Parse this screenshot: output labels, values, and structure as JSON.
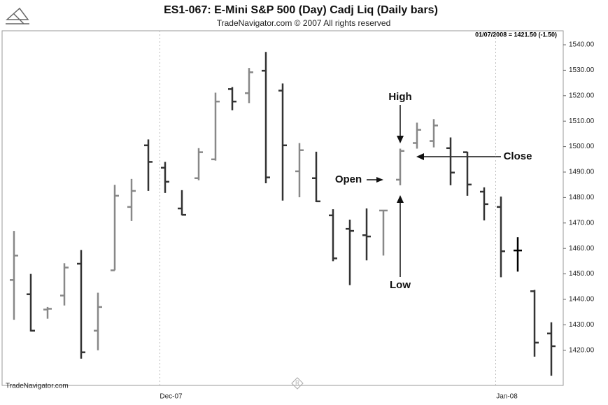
{
  "chart_data": {
    "type": "ohlc",
    "title": "ES1-067:  E-Mini S&P 500 (Day) Cadj Liq  (Daily bars)",
    "subtitle": "TradeNavigator.com © 2007 All rights reserved",
    "info": "01/07/2008 = 1421.50 (-1.50)",
    "watermark": "TradeNavigator.com",
    "categories": [
      null,
      null,
      null,
      null,
      null,
      null,
      null,
      null,
      null,
      "Dec-07",
      null,
      null,
      null,
      null,
      null,
      null,
      null,
      null,
      null,
      null,
      null,
      null,
      null,
      null,
      null,
      null,
      null,
      null,
      null,
      "Jan-08",
      null,
      null,
      null
    ],
    "open": [
      1447.6,
      1442,
      1436,
      1441.5,
      1454,
      1427.7,
      1451.4,
      1476.3,
      1500.5,
      1491.7,
      1475.7,
      1487.6,
      1495,
      1522.6,
      1521,
      1529.8,
      1522,
      1490.3,
      1487.6,
      1473,
      1467.7,
      1465.2,
      1474.9,
      1487,
      1501.4,
      1502.2,
      1499.4,
      1497.8,
      1482.3,
      1476.3,
      1459.2,
      1443.2,
      1426.6
    ],
    "high": [
      1466.9,
      1450,
      1437,
      1454.2,
      1459.4,
      1442.6,
      1485,
      1487.3,
      1502.8,
      1494,
      1482.9,
      1499.4,
      1521.2,
      1523.4,
      1530.9,
      1537.2,
      1524.8,
      1501.4,
      1498,
      1475.4,
      1471.3,
      1475.7,
      1474.9,
      1499.2,
      1509.4,
      1510.8,
      1503.6,
      1498,
      1484,
      1480.4,
      1464.4,
      1443.7,
      1431
    ],
    "low": [
      1432,
      1427.4,
      1432.4,
      1437.6,
      1416.7,
      1420,
      1451.4,
      1470.8,
      1482.6,
      1481.8,
      1473,
      1486.8,
      1494.5,
      1514.3,
      1517.1,
      1485.6,
      1478.8,
      1480.1,
      1478.2,
      1455,
      1445.6,
      1455.3,
      1457.2,
      1484.8,
      1499.2,
      1499.7,
      1484.8,
      1480.7,
      1471,
      1448.7,
      1450.9,
      1417.5,
      1410
    ],
    "close": [
      1457.2,
      1427.7,
      1436.3,
      1452.5,
      1419.2,
      1437,
      1480.7,
      1482.6,
      1494,
      1486.2,
      1473.2,
      1497.8,
      1517.7,
      1517.7,
      1529.2,
      1487.9,
      1500.5,
      1498.6,
      1478.5,
      1456.1,
      1466.9,
      1464.7,
      1474.9,
      1498.3,
      1506.6,
      1508.3,
      1489.8,
      1485.1,
      1477.4,
      1458.9,
      1459.2,
      1423,
      1421.6
    ],
    "colors": [
      "#888",
      "#333",
      "#888",
      "#888",
      "#333",
      "#888",
      "#888",
      "#888",
      "#333",
      "#333",
      "#333",
      "#888",
      "#888",
      "#333",
      "#888",
      "#333",
      "#333",
      "#888",
      "#333",
      "#333",
      "#333",
      "#333",
      "#888",
      "#888",
      "#888",
      "#888",
      "#333",
      "#333",
      "#333",
      "#333",
      "#000",
      "#333",
      "#333"
    ],
    "ylim": [
      1406.2,
      1545.5
    ],
    "yticks": [
      {
        "value": 1420,
        "label": "1420.00"
      },
      {
        "value": 1430,
        "label": "1430.00"
      },
      {
        "value": 1440,
        "label": "1440.00"
      },
      {
        "value": 1450,
        "label": "1450.00"
      },
      {
        "value": 1460,
        "label": "1460.00"
      },
      {
        "value": 1470,
        "label": "1470.00"
      },
      {
        "value": 1480,
        "label": "1480.00"
      },
      {
        "value": 1490,
        "label": "1490.00"
      },
      {
        "value": 1500,
        "label": "1500.00"
      },
      {
        "value": 1510,
        "label": "1510.00"
      },
      {
        "value": 1520,
        "label": "1520.00"
      },
      {
        "value": 1530,
        "label": "1530.00"
      },
      {
        "value": 1540,
        "label": "1540.00"
      }
    ],
    "annotations": [
      "High",
      "Low",
      "Open",
      "Close"
    ]
  }
}
